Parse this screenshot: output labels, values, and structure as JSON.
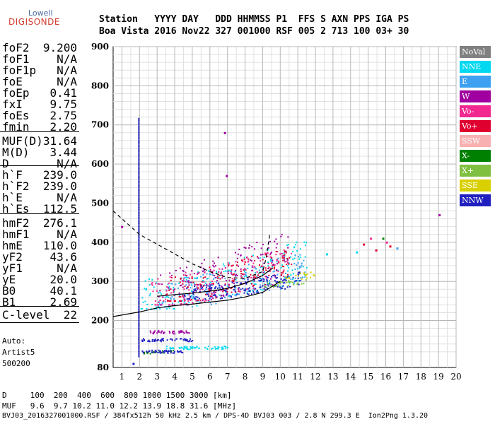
{
  "logo": {
    "top": "Lowell",
    "main": "DIGISONDE"
  },
  "header": {
    "line1": "Station   YYYY DAY   DDD HHMMSS P1  FFS S AXN PPS IGA PS",
    "line2": "Boa Vista 2016 Nov22 327 001000 RSF 005 2 713 100 03+ 30"
  },
  "params_group1": [
    {
      "name": "foF2",
      "value": "9.200"
    },
    {
      "name": "foF1",
      "value": "N/A"
    },
    {
      "name": "foF1p",
      "value": "N/A"
    },
    {
      "name": "foE",
      "value": "N/A"
    },
    {
      "name": "foEp",
      "value": "0.41"
    },
    {
      "name": "fxI",
      "value": "9.75"
    },
    {
      "name": "foEs",
      "value": "2.75"
    },
    {
      "name": "fmin",
      "value": "2.20"
    }
  ],
  "params_group2": [
    {
      "name": "MUF(D)",
      "value": "31.64"
    },
    {
      "name": "M(D)",
      "value": "3.44"
    },
    {
      "name": "D",
      "value": "N/A"
    }
  ],
  "params_group3": [
    {
      "name": "h`F",
      "value": "239.0"
    },
    {
      "name": "h`F2",
      "value": "239.0"
    },
    {
      "name": "h`E",
      "value": "N/A"
    },
    {
      "name": "h`Es",
      "value": "112.5"
    }
  ],
  "params_group4": [
    {
      "name": "hmF2",
      "value": "276.1"
    },
    {
      "name": "hmF1",
      "value": "N/A"
    },
    {
      "name": "hmE",
      "value": "110.0"
    },
    {
      "name": "yF2",
      "value": "43.6"
    },
    {
      "name": "yF1",
      "value": "N/A"
    },
    {
      "name": "yE",
      "value": "20.0"
    },
    {
      "name": "B0",
      "value": "40.1"
    },
    {
      "name": "B1",
      "value": "2.69"
    }
  ],
  "params_group5": [
    {
      "name": "C-level",
      "value": "22"
    }
  ],
  "autoscaling": {
    "line1": "Auto:",
    "line2": "Artist5",
    "line3": "500200"
  },
  "footer": {
    "d_row": "D     100  200  400  600  800 1000 1500 3000 [km]",
    "muf_row": "MUF   9.6  9.7 10.2 11.0 12.2 13.9 18.8 31.6 [MHz]",
    "file_row": "BVJ03_2016327001000.RSF / 384fx512h 50 kHz 2.5 km / DPS-4D BVJ03 003 / 2.8 N 299.3 E  Ion2Png 1.3.20"
  },
  "legend": [
    {
      "label": "NoVal",
      "color": "#808080"
    },
    {
      "label": "NNE",
      "color": "#00d8f0"
    },
    {
      "label": "E",
      "color": "#3ea0f0"
    },
    {
      "label": "W",
      "color": "#a000a0"
    },
    {
      "label": "Vo-",
      "color": "#f02890"
    },
    {
      "label": "Vo+",
      "color": "#e00030"
    },
    {
      "label": "SSW",
      "color": "#f8b0b0"
    },
    {
      "label": "X-",
      "color": "#008000"
    },
    {
      "label": "X+",
      "color": "#80c040"
    },
    {
      "label": "SSE",
      "color": "#d8d000"
    },
    {
      "label": "NNW",
      "color": "#2020c0"
    }
  ],
  "chart_data": {
    "type": "scatter",
    "xlabel": "",
    "ylabel": "",
    "xlim": [
      0.5,
      20
    ],
    "ylim": [
      80,
      900
    ],
    "x_ticks": [
      1,
      2,
      3,
      4,
      5,
      6,
      7,
      8,
      9,
      10,
      11,
      12,
      13,
      14,
      15,
      16,
      17,
      18,
      19,
      20
    ],
    "y_ticks": [
      80,
      200,
      300,
      400,
      500,
      600,
      700,
      800,
      900
    ],
    "grid": true,
    "legend_position": "right",
    "clusters": [
      {
        "name": "NNE",
        "x_range": [
          2.0,
          11.5
        ],
        "y_range": [
          230,
          420
        ],
        "count": 220
      },
      {
        "name": "E",
        "x_range": [
          3.0,
          11.5
        ],
        "y_range": [
          235,
          390
        ],
        "count": 160
      },
      {
        "name": "W",
        "x_range": [
          3.0,
          10.5
        ],
        "y_range": [
          240,
          440
        ],
        "count": 160
      },
      {
        "name": "Vo-",
        "x_range": [
          2.5,
          10.6
        ],
        "y_range": [
          240,
          400
        ],
        "count": 160
      },
      {
        "name": "Vo+",
        "x_range": [
          3.5,
          10.6
        ],
        "y_range": [
          250,
          400
        ],
        "count": 150
      },
      {
        "name": "NNW",
        "x_range": [
          4.5,
          11.2
        ],
        "y_range": [
          255,
          330
        ],
        "count": 170
      },
      {
        "name": "X-",
        "x_range": [
          2.2,
          4.0
        ],
        "y_range": [
          115,
          125
        ],
        "count": 20
      },
      {
        "name": "X+",
        "x_range": [
          9.0,
          11.5
        ],
        "y_range": [
          285,
          310
        ],
        "count": 30
      },
      {
        "name": "SSE",
        "x_range": [
          10.0,
          12.0
        ],
        "y_range": [
          300,
          330
        ],
        "count": 20
      }
    ],
    "es_traces": [
      {
        "name": "NNW",
        "x_range": [
          2.0,
          5.0
        ],
        "y": 150
      },
      {
        "name": "W",
        "x_range": [
          2.5,
          4.8
        ],
        "y": 170
      },
      {
        "name": "NNE",
        "x_range": [
          3.5,
          7.0
        ],
        "y": 130
      },
      {
        "name": "NNW",
        "x_range": [
          2.0,
          4.5
        ],
        "y": 120
      }
    ],
    "vertical_trace": {
      "name": "NNW",
      "x": 1.92,
      "y_range": [
        110,
        720
      ]
    },
    "isolated_points": [
      {
        "x": 14.7,
        "y": 395,
        "name": "Vo+"
      },
      {
        "x": 15.1,
        "y": 410,
        "name": "Vo-"
      },
      {
        "x": 15.4,
        "y": 380,
        "name": "Vo+"
      },
      {
        "x": 16.0,
        "y": 400,
        "name": "Vo-"
      },
      {
        "x": 16.2,
        "y": 390,
        "name": "Vo+"
      },
      {
        "x": 16.6,
        "y": 385,
        "name": "E"
      },
      {
        "x": 15.8,
        "y": 410,
        "name": "X-"
      },
      {
        "x": 14.3,
        "y": 375,
        "name": "NNE"
      },
      {
        "x": 12.6,
        "y": 370,
        "name": "NNE"
      },
      {
        "x": 19.0,
        "y": 470,
        "name": "W"
      },
      {
        "x": 6.8,
        "y": 680,
        "name": "W"
      },
      {
        "x": 6.9,
        "y": 570,
        "name": "W"
      },
      {
        "x": 0.95,
        "y": 440,
        "name": "W"
      },
      {
        "x": 1.6,
        "y": 90,
        "name": "NNW"
      }
    ],
    "profile_curve": [
      {
        "x": 0.5,
        "y": 210
      },
      {
        "x": 2,
        "y": 222
      },
      {
        "x": 3,
        "y": 232
      },
      {
        "x": 4,
        "y": 238
      },
      {
        "x": 5,
        "y": 242
      },
      {
        "x": 6,
        "y": 247
      },
      {
        "x": 7,
        "y": 252
      },
      {
        "x": 8,
        "y": 260
      },
      {
        "x": 9,
        "y": 272
      },
      {
        "x": 10,
        "y": 300
      }
    ],
    "dashed_curve": [
      {
        "x": 0.5,
        "y": 480
      },
      {
        "x": 1,
        "y": 460
      },
      {
        "x": 1.5,
        "y": 440
      },
      {
        "x": 2,
        "y": 420
      },
      {
        "x": 3,
        "y": 395
      },
      {
        "x": 4,
        "y": 370
      },
      {
        "x": 5,
        "y": 345
      },
      {
        "x": 6,
        "y": 325
      },
      {
        "x": 7,
        "y": 310
      },
      {
        "x": 8,
        "y": 308
      },
      {
        "x": 9,
        "y": 325
      },
      {
        "x": 9.2,
        "y": 360
      },
      {
        "x": 9.4,
        "y": 420
      }
    ],
    "trace_curve": [
      {
        "x": 3,
        "y": 262
      },
      {
        "x": 4,
        "y": 266
      },
      {
        "x": 5,
        "y": 270
      },
      {
        "x": 6,
        "y": 275
      },
      {
        "x": 7,
        "y": 282
      },
      {
        "x": 8,
        "y": 295
      },
      {
        "x": 9,
        "y": 315
      },
      {
        "x": 9.6,
        "y": 335
      }
    ]
  }
}
